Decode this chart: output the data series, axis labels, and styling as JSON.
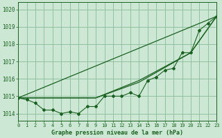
{
  "title": "Graphe pression niveau de la mer (hPa)",
  "background_color": "#cce8d4",
  "plot_bg_color": "#cce8d4",
  "grid_color": "#88bb99",
  "line_color": "#1a6020",
  "xlim": [
    0,
    23
  ],
  "ylim": [
    1013.6,
    1020.4
  ],
  "yticks": [
    1014,
    1015,
    1016,
    1017,
    1018,
    1019,
    1020
  ],
  "xticks": [
    0,
    1,
    2,
    3,
    4,
    5,
    6,
    7,
    8,
    9,
    10,
    11,
    12,
    13,
    14,
    15,
    16,
    17,
    18,
    19,
    20,
    21,
    22,
    23
  ],
  "main_line_x": [
    0,
    1,
    2,
    3,
    4,
    5,
    6,
    7,
    8,
    9,
    10,
    11,
    12,
    13,
    14,
    15,
    16,
    17,
    18,
    19,
    20,
    21,
    22,
    23
  ],
  "main_line_y": [
    1014.9,
    1014.8,
    1014.6,
    1014.2,
    1014.2,
    1014.0,
    1014.1,
    1014.0,
    1014.4,
    1014.4,
    1015.0,
    1015.0,
    1015.0,
    1015.2,
    1015.0,
    1015.9,
    1016.1,
    1016.5,
    1016.6,
    1017.5,
    1017.5,
    1018.8,
    1019.2,
    1019.6
  ],
  "smooth_line1_x": [
    0,
    23
  ],
  "smooth_line1_y": [
    1014.9,
    1019.6
  ],
  "smooth_line2_x": [
    0,
    9,
    14,
    20,
    23
  ],
  "smooth_line2_y": [
    1014.9,
    1014.9,
    1015.8,
    1017.5,
    1019.6
  ],
  "smooth_line3_x": [
    0,
    9,
    14,
    20,
    23
  ],
  "smooth_line3_y": [
    1014.9,
    1014.9,
    1015.9,
    1017.5,
    1019.6
  ]
}
